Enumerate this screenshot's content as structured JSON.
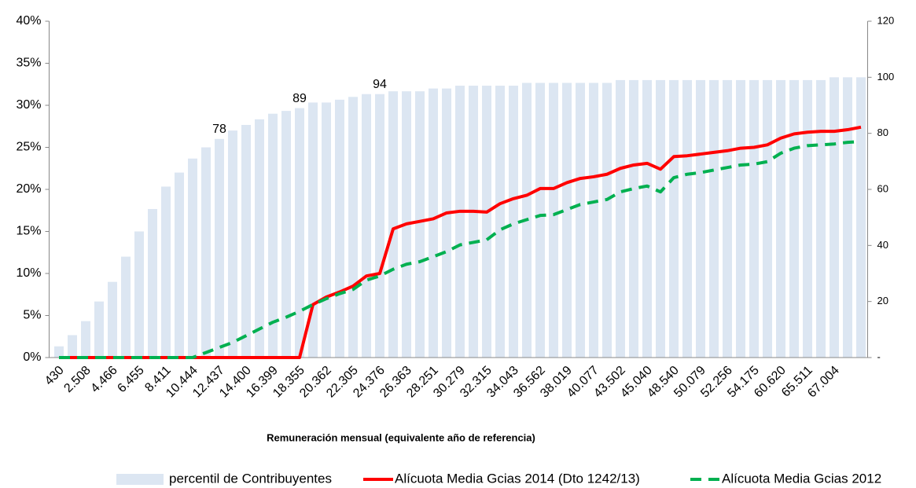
{
  "chart_data": {
    "type": "combo",
    "x_label": "Remuneración mensual (equivalente año de referencia)",
    "categories": [
      "430",
      null,
      "2.508",
      null,
      "4.466",
      null,
      "6.455",
      null,
      "8.411",
      null,
      "10.444",
      null,
      "12.437",
      null,
      "14.400",
      null,
      "16.399",
      null,
      "18.355",
      null,
      "20.362",
      null,
      "22.305",
      null,
      "24.376",
      null,
      "26.363",
      null,
      "28.251",
      null,
      "30.279",
      null,
      "32.315",
      null,
      "34.043",
      null,
      "36.562",
      null,
      "38.019",
      null,
      "40.077",
      null,
      "43.502",
      null,
      "45.040",
      null,
      "48.540",
      null,
      "50.079",
      null,
      "52.256",
      null,
      "54.175",
      null,
      "60.620",
      null,
      "65.511",
      null,
      "67.004",
      null,
      null
    ],
    "ylim": [
      0,
      40
    ],
    "yticks": [
      {
        "value": 0,
        "label": "0%"
      },
      {
        "value": 5,
        "label": "5%"
      },
      {
        "value": 10,
        "label": "10%"
      },
      {
        "value": 15,
        "label": "15%"
      },
      {
        "value": 20,
        "label": "20%"
      },
      {
        "value": 25,
        "label": "25%"
      },
      {
        "value": 30,
        "label": "30%"
      },
      {
        "value": 35,
        "label": "35%"
      },
      {
        "value": 40,
        "label": "40%"
      }
    ],
    "y2lim": [
      0,
      120
    ],
    "y2ticks": [
      {
        "value": 0,
        "label": "-"
      },
      20,
      40,
      60,
      80,
      100,
      120
    ],
    "grid": false,
    "legend": "bottom",
    "series": [
      {
        "name": "percentil de Contribuyentes",
        "type": "bar",
        "axis": "y2",
        "color": "#dce6f2",
        "values": [
          4,
          8,
          13,
          20,
          27,
          36,
          45,
          53,
          61,
          66,
          71,
          75,
          78,
          81,
          83,
          85,
          87,
          88,
          89,
          91,
          91,
          92,
          93,
          94,
          94,
          95,
          95,
          95,
          96,
          96,
          97,
          97,
          97,
          97,
          97,
          98,
          98,
          98,
          98,
          98,
          98,
          98,
          99,
          99,
          99,
          99,
          99,
          99,
          99,
          99,
          99,
          99,
          99,
          99,
          99,
          99,
          99,
          99,
          100,
          100,
          100
        ],
        "value_labels": [
          null,
          null,
          null,
          null,
          null,
          null,
          null,
          null,
          null,
          null,
          null,
          null,
          "78",
          null,
          null,
          null,
          null,
          null,
          "89",
          null,
          null,
          null,
          null,
          null,
          "94",
          null,
          null,
          null,
          null,
          null,
          null,
          null,
          null,
          null,
          null,
          null,
          null,
          null,
          null,
          null,
          null,
          null,
          null,
          null,
          null,
          null,
          null,
          null,
          null,
          null,
          null,
          null,
          null,
          null,
          null,
          null,
          null,
          null,
          null,
          null,
          null
        ]
      },
      {
        "name": "Alícuota Media Gcias 2014 (Dto 1242/13)",
        "type": "line",
        "color": "#ff0000",
        "dashed": false,
        "values": [
          0,
          0,
          0,
          0,
          0,
          0,
          0,
          0,
          0,
          0,
          0,
          0,
          0,
          0,
          0,
          0,
          0,
          0,
          0,
          6.3,
          7.2,
          7.8,
          8.5,
          9.7,
          10,
          15.3,
          15.9,
          16.2,
          16.5,
          17.2,
          17.4,
          17.4,
          17.3,
          18.3,
          18.9,
          19.3,
          20.1,
          20.1,
          20.8,
          21.3,
          21.5,
          21.8,
          22.5,
          22.9,
          23.1,
          22.4,
          23.9,
          24,
          24.2,
          24.4,
          24.6,
          24.9,
          25,
          25.3,
          26.1,
          26.6,
          26.8,
          26.9,
          26.9,
          27.1,
          27.4
        ]
      },
      {
        "name": "Alícuota Media Gcias 2012",
        "type": "line",
        "color": "#00b050",
        "dashed": true,
        "values": [
          0,
          0,
          0,
          0,
          0,
          0,
          0,
          0,
          0,
          0,
          0,
          0.6,
          1.2,
          1.8,
          2.6,
          3.4,
          4.2,
          4.8,
          5.5,
          6.3,
          7,
          7.6,
          8.1,
          9.2,
          9.7,
          10.5,
          11.1,
          11.4,
          12,
          12.6,
          13.4,
          13.7,
          14,
          15.2,
          15.9,
          16.4,
          16.9,
          17,
          17.6,
          18.2,
          18.5,
          18.8,
          19.7,
          20.1,
          20.4,
          19.7,
          21.4,
          21.8,
          22,
          22.3,
          22.6,
          22.9,
          23,
          23.3,
          24.3,
          24.9,
          25.2,
          25.3,
          25.4,
          25.6,
          25.7
        ]
      }
    ]
  }
}
